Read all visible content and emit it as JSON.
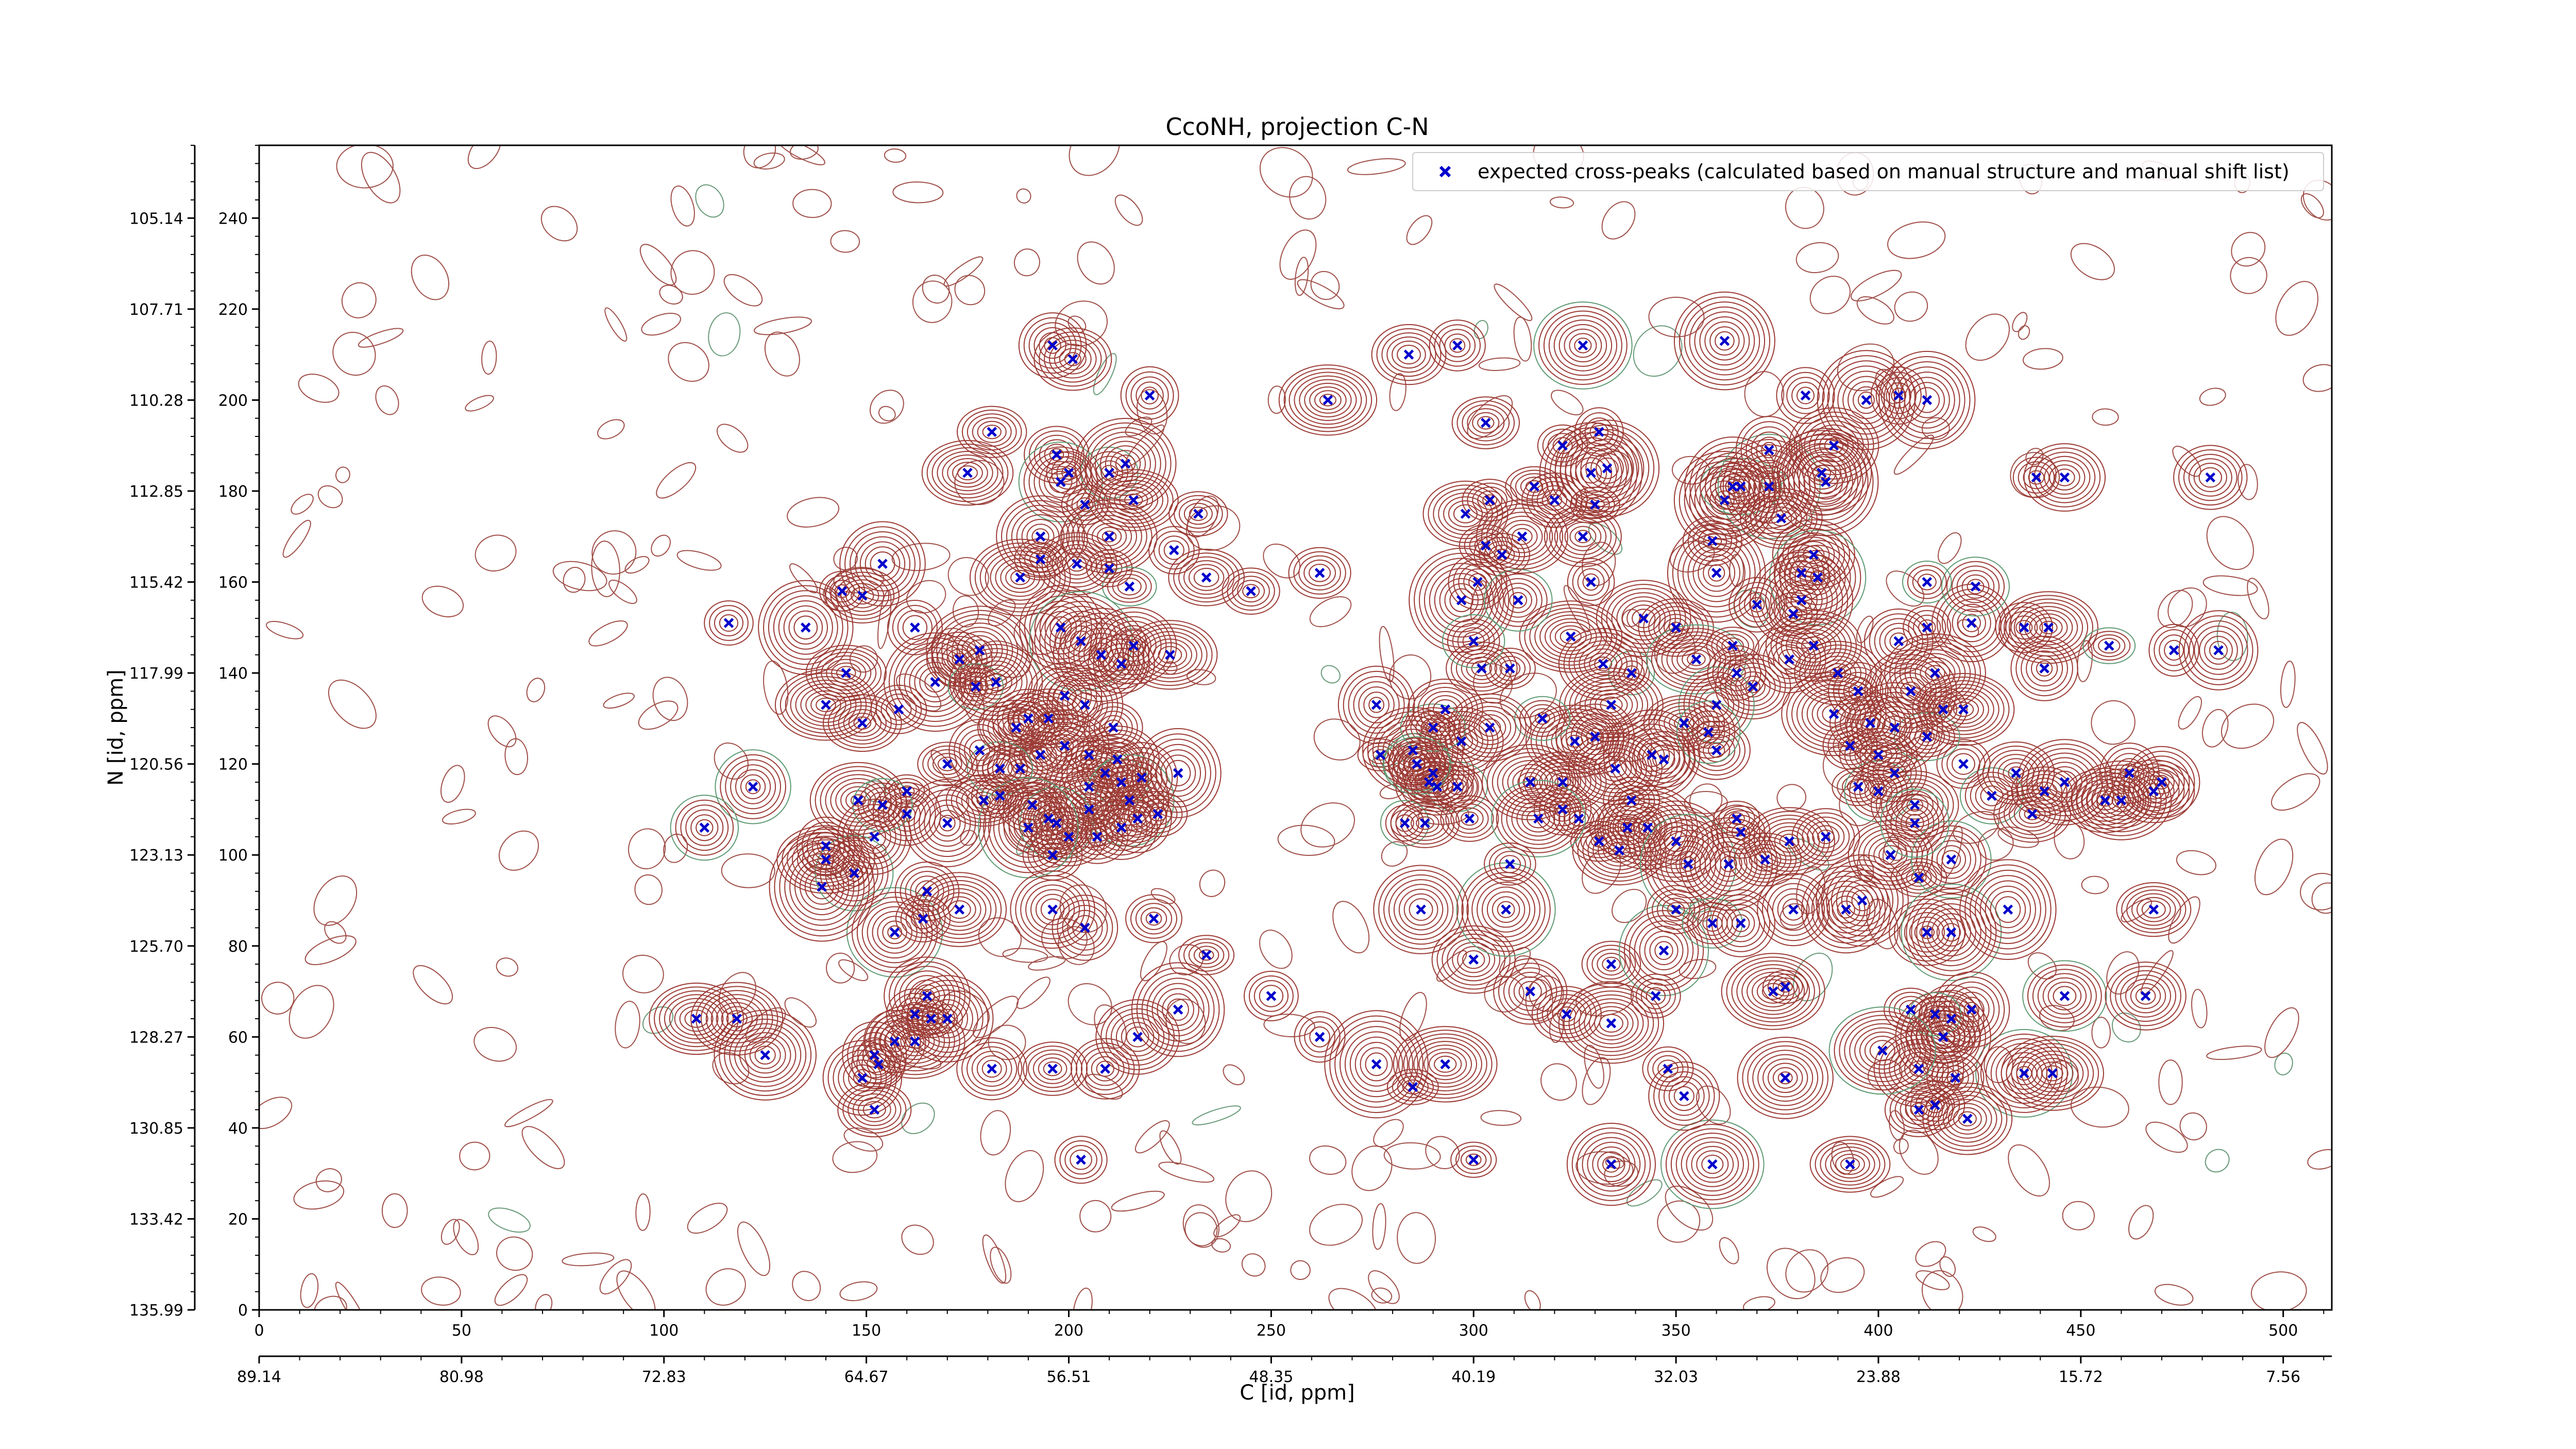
{
  "chart_data": {
    "type": "scatter",
    "title": "CcoNH, projection C-N",
    "xlabel": "C [id, ppm]",
    "ylabel": "N [id, ppm]",
    "xlim": [
      0,
      512
    ],
    "ylim": [
      0,
      256
    ],
    "grid": false,
    "legend_position": "top-right",
    "x_ticks_index": [
      "0",
      "50",
      "100",
      "150",
      "200",
      "250",
      "300",
      "350",
      "400",
      "450",
      "500"
    ],
    "x_ticks_ppm": [
      "89.14",
      "80.98",
      "72.83",
      "64.67",
      "56.51",
      "48.35",
      "40.19",
      "32.03",
      "23.88",
      "15.72",
      "7.56"
    ],
    "y_ticks_index": [
      "0",
      "20",
      "40",
      "60",
      "80",
      "100",
      "120",
      "140",
      "160",
      "180",
      "200",
      "220",
      "240"
    ],
    "y_ticks_ppm": [
      "135.99",
      "133.42",
      "130.85",
      "128.27",
      "125.70",
      "123.13",
      "120.56",
      "117.99",
      "115.42",
      "112.85",
      "110.28",
      "107.71",
      "105.14"
    ],
    "series": [
      {
        "name": "expected cross-peaks (calculated based on manual structure and manual shift list)",
        "color": "#0000cc",
        "marker": "x",
        "points": [
          [
            196,
            212
          ],
          [
            201,
            209
          ],
          [
            220,
            201
          ],
          [
            181,
            193
          ],
          [
            175,
            184
          ],
          [
            197,
            188
          ],
          [
            198,
            182
          ],
          [
            210,
            184
          ],
          [
            214,
            186
          ],
          [
            200,
            184
          ],
          [
            204,
            177
          ],
          [
            216,
            178
          ],
          [
            232,
            175
          ],
          [
            193,
            170
          ],
          [
            210,
            170
          ],
          [
            226,
            167
          ],
          [
            193,
            165
          ],
          [
            188,
            161
          ],
          [
            210,
            163
          ],
          [
            215,
            159
          ],
          [
            234,
            161
          ],
          [
            245,
            158
          ],
          [
            262,
            162
          ],
          [
            202,
            164
          ],
          [
            154,
            164
          ],
          [
            144,
            158
          ],
          [
            149,
            157
          ],
          [
            135,
            150
          ],
          [
            162,
            150
          ],
          [
            173,
            143
          ],
          [
            178,
            145
          ],
          [
            198,
            150
          ],
          [
            203,
            147
          ],
          [
            208,
            144
          ],
          [
            213,
            142
          ],
          [
            216,
            146
          ],
          [
            225,
            144
          ],
          [
            145,
            140
          ],
          [
            167,
            138
          ],
          [
            177,
            137
          ],
          [
            182,
            138
          ],
          [
            187,
            128
          ],
          [
            190,
            130
          ],
          [
            195,
            130
          ],
          [
            199,
            135
          ],
          [
            204,
            133
          ],
          [
            211,
            128
          ],
          [
            140,
            133
          ],
          [
            149,
            129
          ],
          [
            158,
            132
          ],
          [
            193,
            122
          ],
          [
            205,
            115
          ],
          [
            213,
            116
          ],
          [
            227,
            118
          ],
          [
            188,
            119
          ],
          [
            199,
            124
          ],
          [
            205,
            122
          ],
          [
            209,
            118
          ],
          [
            212,
            121
          ],
          [
            215,
            112
          ],
          [
            222,
            109
          ],
          [
            148,
            112
          ],
          [
            160,
            114
          ],
          [
            160,
            109
          ],
          [
            170,
            107
          ],
          [
            179,
            112
          ],
          [
            183,
            119
          ],
          [
            191,
            111
          ],
          [
            195,
            108
          ],
          [
            197,
            107
          ],
          [
            207,
            104
          ],
          [
            213,
            106
          ],
          [
            217,
            108
          ],
          [
            218,
            117
          ],
          [
            205,
            110
          ],
          [
            200,
            104
          ],
          [
            196,
            100
          ],
          [
            190,
            106
          ],
          [
            140,
            99
          ],
          [
            147,
            96
          ],
          [
            157,
            83
          ],
          [
            173,
            88
          ],
          [
            196,
            88
          ],
          [
            204,
            84
          ],
          [
            221,
            86
          ],
          [
            234,
            78
          ],
          [
            250,
            69
          ],
          [
            227,
            66
          ],
          [
            217,
            60
          ],
          [
            209,
            53
          ],
          [
            196,
            53
          ],
          [
            181,
            53
          ],
          [
            157,
            59
          ],
          [
            162,
            59
          ],
          [
            162,
            65
          ],
          [
            165,
            69
          ],
          [
            166,
            64
          ],
          [
            170,
            64
          ],
          [
            153,
            54
          ],
          [
            149,
            51
          ],
          [
            152,
            56
          ],
          [
            152,
            44
          ],
          [
            203,
            33
          ],
          [
            262,
            60
          ],
          [
            276,
            54
          ],
          [
            293,
            54
          ],
          [
            300,
            33
          ],
          [
            285,
            49
          ],
          [
            300,
            77
          ],
          [
            308,
            88
          ],
          [
            287,
            88
          ],
          [
            314,
            70
          ],
          [
            323,
            65
          ],
          [
            324,
            148
          ],
          [
            339,
            140
          ],
          [
            332,
            142
          ],
          [
            334,
            133
          ],
          [
            330,
            126
          ],
          [
            325,
            125
          ],
          [
            317,
            130
          ],
          [
            309,
            141
          ],
          [
            302,
            141
          ],
          [
            304,
            128
          ],
          [
            297,
            125
          ],
          [
            285,
            123
          ],
          [
            296,
            115
          ],
          [
            299,
            108
          ],
          [
            291,
            115
          ],
          [
            289,
            116
          ],
          [
            286,
            120
          ],
          [
            277,
            122
          ],
          [
            283,
            107
          ],
          [
            288,
            107
          ],
          [
            290,
            128
          ],
          [
            293,
            132
          ],
          [
            286,
            120
          ],
          [
            290,
            118
          ],
          [
            276,
            133
          ],
          [
            298,
            175
          ],
          [
            304,
            178
          ],
          [
            303,
            168
          ],
          [
            307,
            166
          ],
          [
            301,
            160
          ],
          [
            297,
            156
          ],
          [
            300,
            147
          ],
          [
            311,
            156
          ],
          [
            312,
            170
          ],
          [
            315,
            181
          ],
          [
            320,
            178
          ],
          [
            329,
            184
          ],
          [
            322,
            190
          ],
          [
            331,
            193
          ],
          [
            333,
            185
          ],
          [
            327,
            170
          ],
          [
            329,
            160
          ],
          [
            342,
            152
          ],
          [
            350,
            150
          ],
          [
            355,
            143
          ],
          [
            360,
            162
          ],
          [
            359,
            169
          ],
          [
            362,
            178
          ],
          [
            366,
            181
          ],
          [
            373,
            181
          ],
          [
            376,
            174
          ],
          [
            384,
            166
          ],
          [
            381,
            162
          ],
          [
            385,
            161
          ],
          [
            379,
            153
          ],
          [
            378,
            143
          ],
          [
            384,
            146
          ],
          [
            381,
            156
          ],
          [
            364,
            146
          ],
          [
            369,
            137
          ],
          [
            360,
            133
          ],
          [
            352,
            129
          ],
          [
            360,
            123
          ],
          [
            344,
            122
          ],
          [
            335,
            119
          ],
          [
            322,
            116
          ],
          [
            314,
            116
          ],
          [
            326,
            108
          ],
          [
            331,
            103
          ],
          [
            336,
            101
          ],
          [
            338,
            106
          ],
          [
            343,
            106
          ],
          [
            350,
            103
          ],
          [
            353,
            98
          ],
          [
            363,
            98
          ],
          [
            366,
            105
          ],
          [
            365,
            108
          ],
          [
            372,
            99
          ],
          [
            378,
            103
          ],
          [
            387,
            104
          ],
          [
            395,
            115
          ],
          [
            400,
            114
          ],
          [
            404,
            118
          ],
          [
            409,
            111
          ],
          [
            403,
            100
          ],
          [
            410,
            95
          ],
          [
            418,
            99
          ],
          [
            409,
            107
          ],
          [
            421,
            120
          ],
          [
            421,
            132
          ],
          [
            414,
            140
          ],
          [
            412,
            150
          ],
          [
            423,
            151
          ],
          [
            424,
            159
          ],
          [
            412,
            160
          ],
          [
            405,
            147
          ],
          [
            390,
            140
          ],
          [
            365,
            140
          ],
          [
            358,
            127
          ],
          [
            347,
            121
          ],
          [
            339,
            112
          ],
          [
            322,
            110
          ],
          [
            316,
            108
          ],
          [
            309,
            98
          ],
          [
            334,
            76
          ],
          [
            347,
            79
          ],
          [
            350,
            88
          ],
          [
            359,
            85
          ],
          [
            366,
            85
          ],
          [
            379,
            88
          ],
          [
            392,
            88
          ],
          [
            396,
            90
          ],
          [
            412,
            83
          ],
          [
            418,
            83
          ],
          [
            432,
            88
          ],
          [
            446,
            69
          ],
          [
            466,
            69
          ],
          [
            468,
            88
          ],
          [
            436,
            52
          ],
          [
            443,
            52
          ],
          [
            423,
            66
          ],
          [
            418,
            64
          ],
          [
            416,
            60
          ],
          [
            410,
            53
          ],
          [
            414,
            45
          ],
          [
            410,
            44
          ],
          [
            414,
            65
          ],
          [
            416,
            60
          ],
          [
            419,
            51
          ],
          [
            408,
            66
          ],
          [
            401,
            57
          ],
          [
            393,
            32
          ],
          [
            377,
            51
          ],
          [
            359,
            32
          ],
          [
            352,
            47
          ],
          [
            348,
            53
          ],
          [
            334,
            32
          ],
          [
            334,
            63
          ],
          [
            345,
            69
          ],
          [
            374,
            70
          ],
          [
            377,
            71
          ],
          [
            422,
            42
          ],
          [
            364,
            181
          ],
          [
            373,
            189
          ],
          [
            370,
            155
          ],
          [
            389,
            190
          ],
          [
            397,
            200
          ],
          [
            405,
            201
          ],
          [
            412,
            200
          ],
          [
            382,
            201
          ],
          [
            362,
            213
          ],
          [
            327,
            212
          ],
          [
            296,
            212
          ],
          [
            284,
            210
          ],
          [
            264,
            200
          ],
          [
            303,
            195
          ],
          [
            330,
            177
          ],
          [
            386,
            184
          ],
          [
            387,
            182
          ],
          [
            439,
            183
          ],
          [
            446,
            183
          ],
          [
            482,
            183
          ],
          [
            436,
            150
          ],
          [
            442,
            150
          ],
          [
            457,
            146
          ],
          [
            473,
            145
          ],
          [
            484,
            145
          ],
          [
            441,
            141
          ],
          [
            460,
            112
          ],
          [
            470,
            116
          ],
          [
            441,
            114
          ],
          [
            428,
            113
          ],
          [
            434,
            118
          ],
          [
            438,
            109
          ],
          [
            446,
            116
          ],
          [
            456,
            112
          ],
          [
            462,
            118
          ],
          [
            468,
            114
          ],
          [
            412,
            126
          ],
          [
            416,
            132
          ],
          [
            408,
            136
          ],
          [
            404,
            128
          ],
          [
            400,
            122
          ],
          [
            393,
            124
          ],
          [
            398,
            129
          ],
          [
            389,
            131
          ],
          [
            395,
            136
          ],
          [
            116,
            151
          ],
          [
            122,
            115
          ],
          [
            110,
            106
          ],
          [
            108,
            64
          ],
          [
            118,
            64
          ],
          [
            125,
            56
          ],
          [
            154,
            111
          ],
          [
            152,
            104
          ],
          [
            140,
            102
          ],
          [
            139,
            93
          ],
          [
            165,
            92
          ],
          [
            164,
            86
          ],
          [
            170,
            120
          ],
          [
            178,
            123
          ],
          [
            183,
            113
          ]
        ]
      }
    ]
  }
}
